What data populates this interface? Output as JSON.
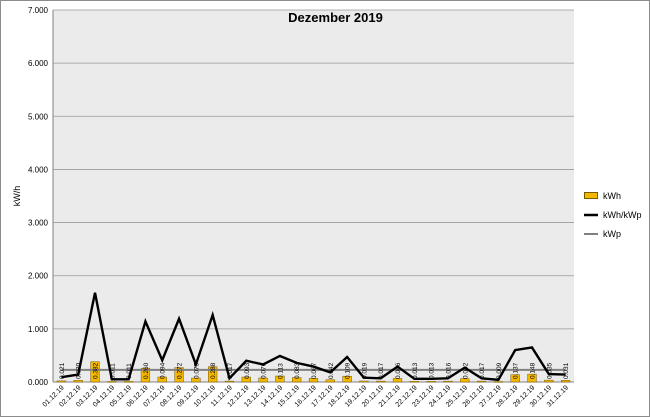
{
  "chart_data": {
    "type": "bar+line",
    "title": "Dezember 2019",
    "ylabel": "kW/h",
    "xlabel": "",
    "ylim": [
      0,
      7
    ],
    "yticks": [
      "0.000",
      "1.000",
      "2.000",
      "3.000",
      "4.000",
      "5.000",
      "6.000",
      "7.000"
    ],
    "grid": "horizontal",
    "legend_position": "right",
    "categories": [
      "01.12.19",
      "02.12.19",
      "03.12.19",
      "04.12.19",
      "05.12.19",
      "06.12.19",
      "07.12.19",
      "08.12.19",
      "09.12.19",
      "10.12.19",
      "11.12.19",
      "12.12.19",
      "13.12.19",
      "14.12.19",
      "15.12.19",
      "16.12.19",
      "17.12.19",
      "18.12.19",
      "19.12.19",
      "20.12.19",
      "21.12.19",
      "22.12.19",
      "23.12.19",
      "24.12.19",
      "25.12.19",
      "26.12.19",
      "27.12.19",
      "28.12.19",
      "29.12.19",
      "30.12.19",
      "31.12.19"
    ],
    "series": [
      {
        "name": "kWh",
        "kind": "bar",
        "color": "#f5b800",
        "values": [
          0.021,
          0.03,
          0.382,
          0.011,
          0.011,
          0.26,
          0.094,
          0.272,
          0.075,
          0.288,
          0.017,
          0.093,
          0.076,
          0.113,
          0.083,
          0.067,
          0.042,
          0.109,
          0.019,
          0.017,
          0.066,
          0.013,
          0.013,
          0.016,
          0.062,
          0.017,
          0.009,
          0.137,
          0.148,
          0.035,
          0.031
        ],
        "labels": [
          "0.021",
          "0.030",
          "0.382",
          "0.011",
          "0.011",
          "0.260",
          "0.094",
          "0.272",
          "0.075",
          "0.288",
          "0.017",
          "0.093",
          "0.076",
          "0.113",
          "0.083",
          "0.067",
          "0.042",
          "0.109",
          "0.019",
          "0.017",
          "0.066",
          "0.013",
          "0.013",
          "0.016",
          "0.062",
          "0.017",
          "0.009",
          "0.137",
          "0.148",
          "0.035",
          "0.031"
        ]
      },
      {
        "name": "kWh/kWp",
        "kind": "line",
        "color": "#000000",
        "values": [
          0.09,
          0.14,
          1.68,
          0.05,
          0.05,
          1.14,
          0.41,
          1.19,
          0.33,
          1.26,
          0.07,
          0.4,
          0.33,
          0.49,
          0.36,
          0.29,
          0.18,
          0.47,
          0.08,
          0.07,
          0.29,
          0.06,
          0.06,
          0.07,
          0.27,
          0.07,
          0.04,
          0.6,
          0.65,
          0.15,
          0.14
        ]
      },
      {
        "name": "kWp",
        "kind": "line",
        "color": "#808080",
        "values": [
          0.228,
          0.228,
          0.228,
          0.228,
          0.228,
          0.228,
          0.228,
          0.228,
          0.228,
          0.228,
          0.228,
          0.228,
          0.228,
          0.228,
          0.228,
          0.228,
          0.228,
          0.228,
          0.228,
          0.228,
          0.228,
          0.228,
          0.228,
          0.228,
          0.228,
          0.228,
          0.228,
          0.228,
          0.228,
          0.228,
          0.228
        ]
      }
    ]
  }
}
